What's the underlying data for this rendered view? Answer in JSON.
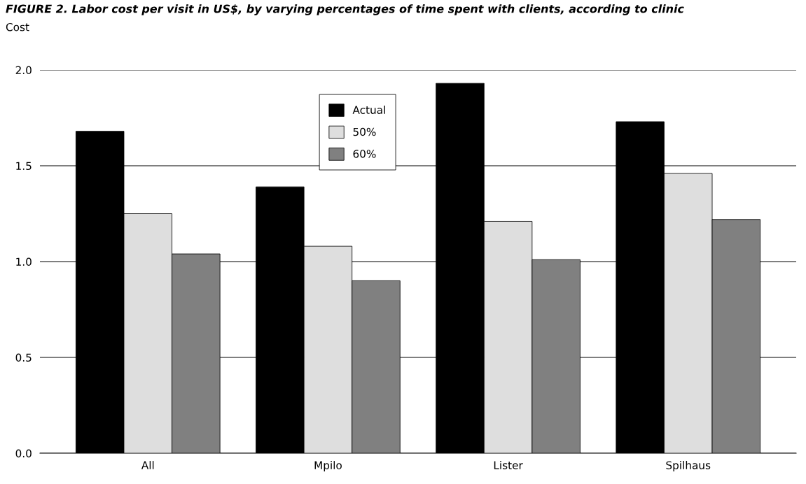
{
  "chart_data": {
    "type": "bar",
    "title": "FIGURE 2. Labor cost per visit in US$, by varying percentages of time spent with clients, according to clinic",
    "ylabel": "Cost",
    "categories": [
      "All",
      "Mpilo",
      "Lister",
      "Spilhaus"
    ],
    "series": [
      {
        "name": "Actual",
        "color": "#000000",
        "values": [
          1.68,
          1.39,
          1.93,
          1.73
        ]
      },
      {
        "name": "50%",
        "color": "#dedede",
        "values": [
          1.25,
          1.08,
          1.21,
          1.46
        ]
      },
      {
        "name": "60%",
        "color": "#808080",
        "values": [
          1.04,
          0.9,
          1.01,
          1.22
        ]
      }
    ],
    "ylim": [
      0,
      2.0
    ],
    "yticks": [
      {
        "value": 0,
        "label": "0.0"
      },
      {
        "value": 0.5,
        "label": "0.5"
      },
      {
        "value": 1.0,
        "label": "1.0"
      },
      {
        "value": 1.5,
        "label": "1.5"
      },
      {
        "value": 2.0,
        "label": "2.0"
      }
    ],
    "grid": "y",
    "legend": "top"
  }
}
